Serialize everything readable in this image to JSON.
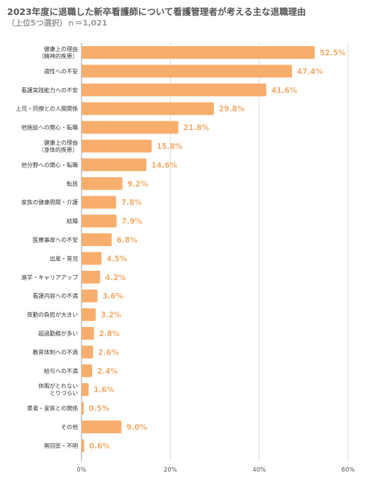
{
  "chart_data": {
    "type": "bar",
    "orientation": "horizontal",
    "title": "2023年度に退職した新卒看護師について看護管理者が考える主な退職理由",
    "subtitle": "（上位5つ選択）ｎ＝1,021",
    "xlabel": "",
    "ylabel": "",
    "xlim": [
      0,
      60
    ],
    "x_ticks": [
      "0%",
      "20%",
      "40%",
      "60%"
    ],
    "grid": true,
    "bar_color": "#f7ae6c",
    "label_color": "#f2ab6a",
    "categories": [
      [
        "健康上の理由",
        "（精神的疾患）"
      ],
      [
        "適性への不安"
      ],
      [
        "看護実践能力への不安"
      ],
      [
        "上司・同僚との人間関係"
      ],
      [
        "他施設への関心・転職"
      ],
      [
        "健康上の理由",
        "（身体的疾患）"
      ],
      [
        "他分野への関心・転職"
      ],
      [
        "転居"
      ],
      [
        "家族の健康問題・介護"
      ],
      [
        "結婚"
      ],
      [
        "医療事故への不安"
      ],
      [
        "出産・育児"
      ],
      [
        "進学・キャリアアップ"
      ],
      [
        "看護内容への不満"
      ],
      [
        "夜勤の負担が大きい"
      ],
      [
        "超過勤務が多い"
      ],
      [
        "教育体制への不満"
      ],
      [
        "給与への不満"
      ],
      [
        "休暇がとれない",
        "とりづらい"
      ],
      [
        "患者・家族との関係"
      ],
      [
        "その他"
      ],
      [
        "無回答・不明"
      ]
    ],
    "values": [
      52.5,
      47.4,
      41.6,
      29.8,
      21.8,
      15.8,
      14.6,
      9.2,
      7.8,
      7.9,
      6.8,
      4.5,
      4.2,
      3.6,
      3.2,
      2.8,
      2.6,
      2.4,
      1.6,
      0.5,
      9.0,
      0.6
    ],
    "value_labels": [
      "52.5%",
      "47.4%",
      "41.6%",
      "29.8%",
      "21.8%",
      "15.8%",
      "14.6%",
      "9.2%",
      "7.8%",
      "7.9%",
      "6.8%",
      "4.5%",
      "4.2%",
      "3.6%",
      "3.2%",
      "2.8%",
      "2.6%",
      "2.4%",
      "1.6%",
      "0.5%",
      "9.0%",
      "0.6%"
    ]
  }
}
